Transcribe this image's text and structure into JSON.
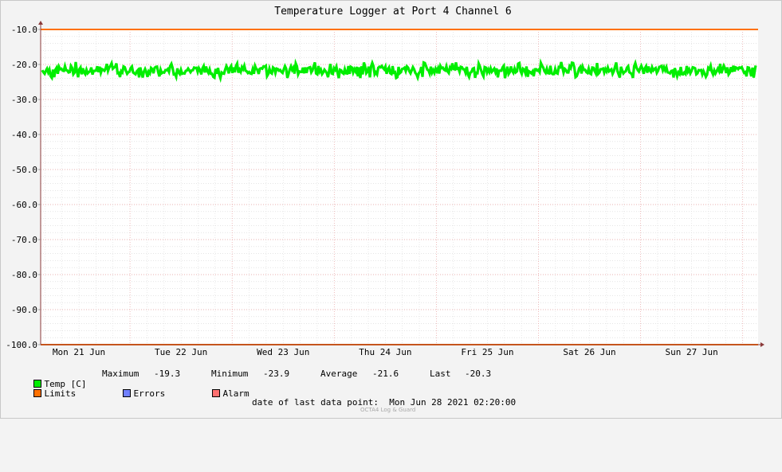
{
  "chart_data": {
    "type": "line",
    "title": "Temperature Logger at Port 4 Channel 6",
    "ylim": [
      -100.0,
      -10.0
    ],
    "y_ticks": [
      "-10.0",
      "-20.0",
      "-30.0",
      "-40.0",
      "-50.0",
      "-60.0",
      "-70.0",
      "-80.0",
      "-90.0",
      "-100.0"
    ],
    "x_ticks": [
      "Mon 21 Jun",
      "Tue 22 Jun",
      "Wed 23 Jun",
      "Thu 24 Jun",
      "Fri 25 Jun",
      "Sat 26 Jun",
      "Sun 27 Jun"
    ],
    "series": [
      {
        "name": "Temp [C]",
        "color": "#00ee00",
        "min": -23.9,
        "max": -19.3,
        "average": -21.6,
        "last": -20.3
      },
      {
        "name": "Limits",
        "color": "#ff7000",
        "values": [
          -10.0,
          -100.0
        ]
      }
    ],
    "grid": true,
    "legend": "bottom"
  },
  "legend": {
    "temp_label": "Temp [C]",
    "max_label": "Maximum",
    "max_value": "-19.3",
    "min_label": "Minimum",
    "min_value": "-23.9",
    "avg_label": "Average",
    "avg_value": "-21.6",
    "last_label": "Last",
    "last_value": "-20.3",
    "limits_label": "Limits",
    "errors_label": "Errors",
    "alarm_label": "Alarm",
    "temp_color": "#00ee00",
    "limits_color": "#ff7000",
    "errors_color": "#7080ff",
    "alarm_color": "#ff7070"
  },
  "footer": {
    "last_point_label": "date of last data point:",
    "last_point_value": "Mon Jun 28 2021 02:20:00",
    "watermark": "OCTA4 Log & Guard"
  }
}
